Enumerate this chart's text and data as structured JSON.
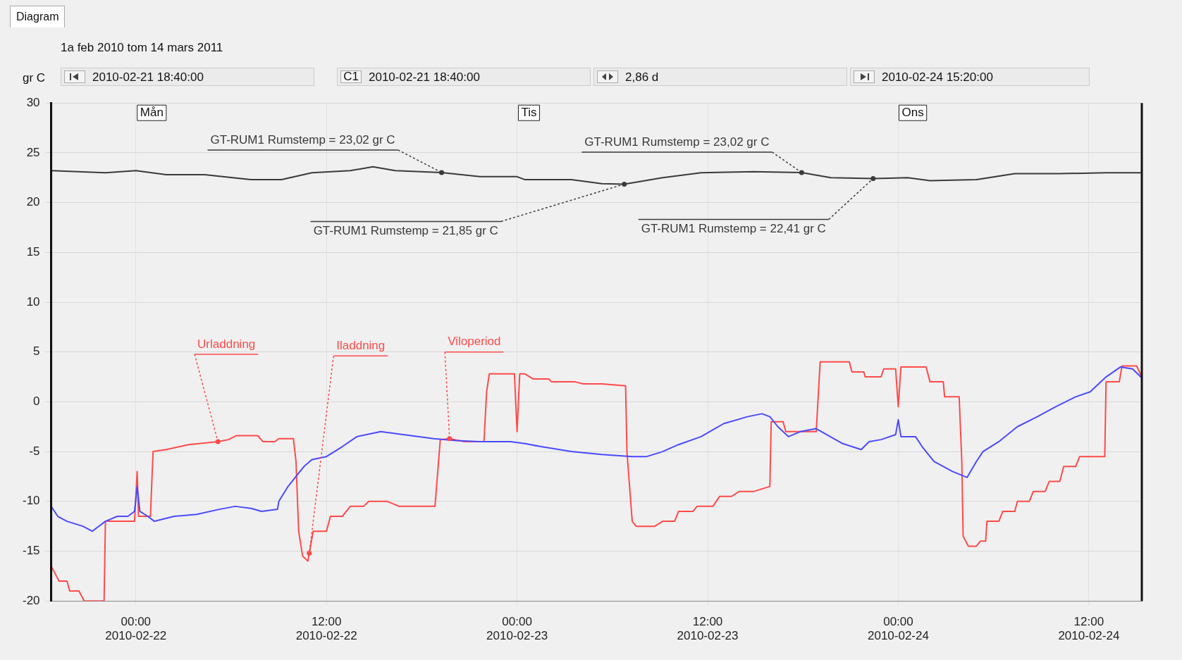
{
  "chart_data": {
    "type": "line",
    "title": "1a feb 2010  tom 14 mars 2011",
    "ylabel": "gr C",
    "xlim": [
      "2010-02-21T18:40",
      "2010-02-24T15:20"
    ],
    "xticks": [
      {
        "value": "2010-02-22T00:00",
        "label": "00:00\n2010-02-22"
      },
      {
        "value": "2010-02-22T12:00",
        "label": "12:00\n2010-02-22"
      },
      {
        "value": "2010-02-23T00:00",
        "label": "00:00\n2010-02-23"
      },
      {
        "value": "2010-02-23T12:00",
        "label": "12:00\n2010-02-23"
      },
      {
        "value": "2010-02-24T00:00",
        "label": "00:00\n2010-02-24"
      },
      {
        "value": "2010-02-24T12:00",
        "label": "12:00\n2010-02-24"
      }
    ],
    "ylim": [
      -20,
      30
    ],
    "yticks": [
      -20,
      -15,
      -10,
      -5,
      0,
      5,
      10,
      15,
      20,
      25,
      30
    ],
    "grid": true,
    "legend": false,
    "marker": "none",
    "line_style": "solid",
    "series": [
      {
        "color": "#3a3a3a",
        "x": [
          "2010-02-21T18:40",
          "2010-02-21T22:05",
          "2010-02-22T00:00",
          "2010-02-22T01:55",
          "2010-02-22T04:20",
          "2010-02-22T07:15",
          "2010-02-22T09:10",
          "2010-02-22T11:05",
          "2010-02-22T13:30",
          "2010-02-22T14:55",
          "2010-02-22T16:20",
          "2010-02-22T19:15",
          "2010-02-22T21:40",
          "2010-02-23T00:00",
          "2010-02-23T00:30",
          "2010-02-23T03:25",
          "2010-02-23T05:20",
          "2010-02-23T06:45",
          "2010-02-23T09:10",
          "2010-02-23T11:35",
          "2010-02-23T14:55",
          "2010-02-23T17:55",
          "2010-02-23T19:45",
          "2010-02-23T22:25",
          "2010-02-24T00:35",
          "2010-02-24T02:00",
          "2010-02-24T04:55",
          "2010-02-24T07:20",
          "2010-02-24T10:10",
          "2010-02-24T13:05",
          "2010-02-24T15:20"
        ],
        "values": [
          23.2,
          23,
          23.2,
          22.8,
          22.8,
          22.3,
          22.3,
          23,
          23.2,
          23.6,
          23.2,
          23.02,
          22.6,
          22.6,
          22.3,
          22.3,
          21.9,
          21.85,
          22.5,
          23,
          23.1,
          23.02,
          22.5,
          22.41,
          22.5,
          22.2,
          22.3,
          22.9,
          22.9,
          23,
          23
        ]
      },
      {
        "color": "#ff4a4a",
        "x": [
          "2010-02-21T18:40",
          "2010-02-21T19:00",
          "2010-02-21T19:10",
          "2010-02-21T19:40",
          "2010-02-21T19:50",
          "2010-02-21T20:25",
          "2010-02-21T20:45",
          "2010-02-21T21:20",
          "2010-02-21T22:00",
          "2010-02-21T22:05",
          "2010-02-21T23:15",
          "2010-02-21T23:55",
          "2010-02-22T00:05",
          "2010-02-22T00:10",
          "2010-02-22T00:45",
          "2010-02-22T00:55",
          "2010-02-22T01:05",
          "2010-02-22T01:55",
          "2010-02-22T03:20",
          "2010-02-22T05:10",
          "2010-02-22T05:50",
          "2010-02-22T06:20",
          "2010-02-22T07:40",
          "2010-02-22T08:00",
          "2010-02-22T08:45",
          "2010-02-22T09:00",
          "2010-02-22T09:55",
          "2010-02-22T10:05",
          "2010-02-22T10:15",
          "2010-02-22T10:30",
          "2010-02-22T10:50",
          "2010-02-22T10:55",
          "2010-02-22T11:10",
          "2010-02-22T12:00",
          "2010-02-22T12:15",
          "2010-02-22T13:00",
          "2010-02-22T13:30",
          "2010-02-22T14:20",
          "2010-02-22T14:40",
          "2010-02-22T15:50",
          "2010-02-22T16:35",
          "2010-02-22T18:50",
          "2010-02-22T19:10",
          "2010-02-22T19:45",
          "2010-02-22T20:40",
          "2010-02-22T21:55",
          "2010-02-22T22:05",
          "2010-02-22T22:15",
          "2010-02-22T23:50",
          "2010-02-23T00:00",
          "2010-02-23T00:10",
          "2010-02-23T00:30",
          "2010-02-23T01:00",
          "2010-02-23T02:00",
          "2010-02-23T02:10",
          "2010-02-23T03:40",
          "2010-02-23T04:10",
          "2010-02-23T05:20",
          "2010-02-23T06:50",
          "2010-02-23T06:55",
          "2010-02-23T07:15",
          "2010-02-23T07:30",
          "2010-02-23T08:40",
          "2010-02-23T09:10",
          "2010-02-23T09:55",
          "2010-02-23T10:10",
          "2010-02-23T11:05",
          "2010-02-23T11:20",
          "2010-02-23T12:20",
          "2010-02-23T12:45",
          "2010-02-23T13:30",
          "2010-02-23T14:00",
          "2010-02-23T14:55",
          "2010-02-23T15:55",
          "2010-02-23T16:00",
          "2010-02-23T16:45",
          "2010-02-23T16:55",
          "2010-02-23T18:50",
          "2010-02-23T19:05",
          "2010-02-23T20:55",
          "2010-02-23T21:05",
          "2010-02-23T21:50",
          "2010-02-23T21:55",
          "2010-02-23T22:55",
          "2010-02-23T23:05",
          "2010-02-23T23:50",
          "2010-02-24T00:00",
          "2010-02-24T00:10",
          "2010-02-24T01:10",
          "2010-02-24T01:45",
          "2010-02-24T02:00",
          "2010-02-24T02:50",
          "2010-02-24T02:55",
          "2010-02-24T03:50",
          "2010-02-24T04:00",
          "2010-02-24T04:05",
          "2010-02-24T04:25",
          "2010-02-24T04:55",
          "2010-02-24T05:10",
          "2010-02-24T05:30",
          "2010-02-24T05:35",
          "2010-02-24T06:20",
          "2010-02-24T06:35",
          "2010-02-24T07:20",
          "2010-02-24T07:30",
          "2010-02-24T08:15",
          "2010-02-24T08:30",
          "2010-02-24T09:15",
          "2010-02-24T09:30",
          "2010-02-24T10:10",
          "2010-02-24T10:25",
          "2010-02-24T11:10",
          "2010-02-24T11:25",
          "2010-02-24T12:05",
          "2010-02-24T13:00",
          "2010-02-24T13:05",
          "2010-02-24T13:55",
          "2010-02-24T14:05",
          "2010-02-24T15:00",
          "2010-02-24T15:20"
        ],
        "values": [
          -16.5,
          -17.5,
          -18,
          -18,
          -19,
          -19,
          -20,
          -20,
          -20,
          -12,
          -12,
          -12,
          -7,
          -11.5,
          -11.5,
          -11.5,
          -5,
          -4.8,
          -4.3,
          -4,
          -3.8,
          -3.4,
          -3.4,
          -4,
          -4,
          -3.7,
          -3.7,
          -6,
          -13,
          -15.5,
          -16,
          -15.2,
          -13,
          -13,
          -11.5,
          -11.5,
          -10.5,
          -10.5,
          -10,
          -10,
          -10.5,
          -10.5,
          -3.8,
          -3.7,
          -4,
          -4,
          1,
          2.8,
          2.8,
          -3,
          2.8,
          2.8,
          2.3,
          2.3,
          2,
          2,
          1.8,
          1.8,
          1.6,
          -5,
          -12,
          -12.5,
          -12.5,
          -12,
          -12,
          -11,
          -11,
          -10.5,
          -10.5,
          -9.5,
          -9.5,
          -9,
          -9,
          -8.5,
          -2,
          -2,
          -3,
          -3,
          4,
          4,
          3,
          3,
          2.5,
          2.5,
          3.3,
          3.3,
          -0.5,
          3.5,
          3.5,
          3.5,
          2,
          2,
          0.5,
          0.5,
          -6,
          -13.5,
          -14.5,
          -14.5,
          -14,
          -14,
          -12,
          -12,
          -11,
          -11,
          -10,
          -10,
          -9,
          -9,
          -8,
          -8,
          -6.5,
          -6.5,
          -5.5,
          -5.5,
          -5.5,
          2,
          2,
          3.6,
          3.6,
          2.5
        ]
      },
      {
        "color": "#4a4aff",
        "x": [
          "2010-02-21T18:40",
          "2010-02-21T19:05",
          "2010-02-21T19:40",
          "2010-02-21T20:40",
          "2010-02-21T21:15",
          "2010-02-21T22:05",
          "2010-02-21T22:50",
          "2010-02-21T23:30",
          "2010-02-21T23:55",
          "2010-02-22T00:05",
          "2010-02-22T00:15",
          "2010-02-22T00:45",
          "2010-02-22T01:10",
          "2010-02-22T02:25",
          "2010-02-22T03:50",
          "2010-02-22T05:15",
          "2010-02-22T06:15",
          "2010-02-22T07:15",
          "2010-02-22T07:55",
          "2010-02-22T08:55",
          "2010-02-22T09:00",
          "2010-02-22T09:35",
          "2010-02-22T10:05",
          "2010-02-22T10:35",
          "2010-02-22T11:05",
          "2010-02-22T12:00",
          "2010-02-22T13:00",
          "2010-02-22T13:55",
          "2010-02-22T15:25",
          "2010-02-22T16:50",
          "2010-02-22T18:45",
          "2010-02-22T20:10",
          "2010-02-22T21:40",
          "2010-02-22T23:35",
          "2010-02-23T00:30",
          "2010-02-23T01:30",
          "2010-02-23T03:25",
          "2010-02-23T05:20",
          "2010-02-23T07:15",
          "2010-02-23T08:10",
          "2010-02-23T09:10",
          "2010-02-23T10:10",
          "2010-02-23T11:35",
          "2010-02-23T13:00",
          "2010-02-23T14:30",
          "2010-02-23T15:25",
          "2010-02-23T15:55",
          "2010-02-23T16:25",
          "2010-02-23T17:05",
          "2010-02-23T17:50",
          "2010-02-23T18:50",
          "2010-02-23T19:30",
          "2010-02-23T20:30",
          "2010-02-23T21:40",
          "2010-02-23T22:10",
          "2010-02-23T22:55",
          "2010-02-23T23:50",
          "2010-02-24T00:00",
          "2010-02-24T00:10",
          "2010-02-24T01:05",
          "2010-02-24T01:30",
          "2010-02-24T02:15",
          "2010-02-24T03:25",
          "2010-02-24T04:20",
          "2010-02-24T04:55",
          "2010-02-24T05:20",
          "2010-02-24T06:20",
          "2010-02-24T07:30",
          "2010-02-24T08:45",
          "2010-02-24T09:55",
          "2010-02-24T11:10",
          "2010-02-24T12:05",
          "2010-02-24T13:05",
          "2010-02-24T14:00",
          "2010-02-24T14:45",
          "2010-02-24T15:20"
        ],
        "values": [
          -10.5,
          -11.5,
          -12,
          -12.5,
          -13,
          -12,
          -11.5,
          -11.5,
          -11,
          -8.5,
          -11,
          -11.5,
          -12,
          -11.5,
          -11.3,
          -10.8,
          -10.5,
          -10.7,
          -11,
          -10.8,
          -10,
          -8.5,
          -7.5,
          -6.5,
          -5.8,
          -5.5,
          -4.5,
          -3.5,
          -3,
          -3.3,
          -3.7,
          -3.9,
          -4,
          -4,
          -4.2,
          -4.5,
          -5,
          -5.3,
          -5.5,
          -5.5,
          -5,
          -4.3,
          -3.5,
          -2.2,
          -1.5,
          -1.2,
          -1.5,
          -2.5,
          -3.5,
          -3,
          -2.7,
          -3.3,
          -4.2,
          -4.8,
          -4,
          -3.8,
          -3.3,
          -1.8,
          -3.5,
          -3.5,
          -4.5,
          -6,
          -7,
          -7.6,
          -6,
          -5,
          -4,
          -2.5,
          -1.5,
          -0.5,
          0.5,
          1,
          2.5,
          3.5,
          3.3,
          2.4
        ]
      }
    ],
    "annotations": [
      "Diagram",
      "2010-02-21 18:40:00",
      "C1",
      "2010-02-21 18:40:00",
      "2,86 d",
      "2010-02-24 15:20:00",
      {
        "text": "Mån",
        "x": "2010-02-22T01:00"
      },
      {
        "text": "Tis",
        "x": "2010-02-23T00:45"
      },
      {
        "text": "Ons",
        "x": "2010-02-24T00:55"
      },
      {
        "text": "GT-RUM1 Rumstemp = 23,02 gr C",
        "x": "2010-02-22T19:15",
        "y": 23.02
      },
      {
        "text": "GT-RUM1 Rumstemp = 21,85 gr C",
        "x": "2010-02-23T06:45",
        "y": 21.85
      },
      {
        "text": "GT-RUM1 Rumstemp = 23,02 gr C",
        "x": "2010-02-23T17:55",
        "y": 23.02
      },
      {
        "text": "GT-RUM1 Rumstemp = 22,41 gr C",
        "x": "2010-02-23T22:25",
        "y": 22.41
      },
      {
        "text": "Urladdning",
        "x": "2010-02-22T05:10",
        "y": -4.0
      },
      {
        "text": "Iladdning",
        "x": "2010-02-22T10:55",
        "y": -15.2
      },
      {
        "text": "Viloperiod",
        "x": "2010-02-22T19:45",
        "y": -3.7
      }
    ]
  }
}
